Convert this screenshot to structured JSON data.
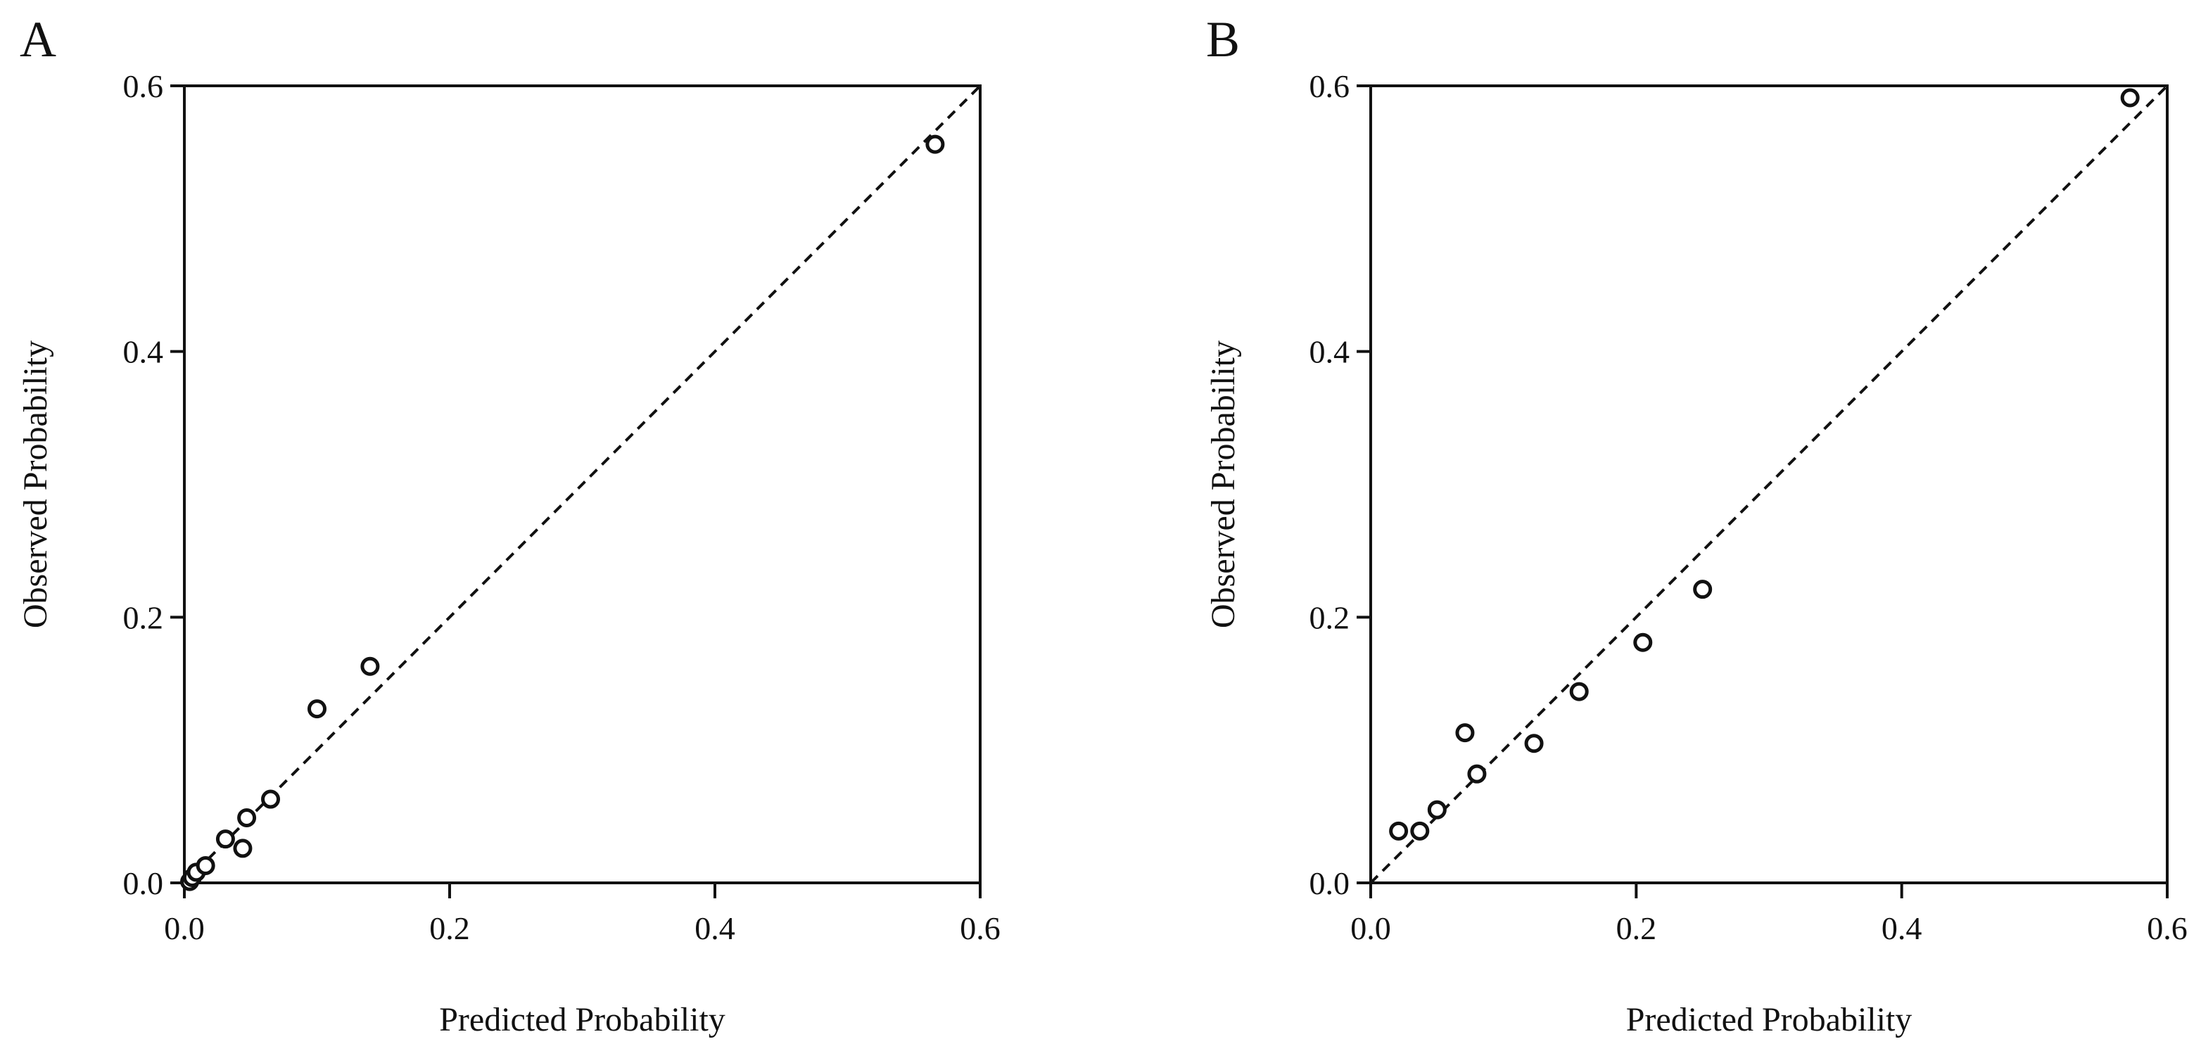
{
  "chart_data": [
    {
      "type": "scatter",
      "panel_label": "A",
      "xlabel": "Predicted Probability",
      "ylabel": "Observed Probability",
      "xlim": [
        0,
        0.6
      ],
      "ylim": [
        0,
        0.6
      ],
      "xticks": [
        "0.0",
        "0.2",
        "0.4",
        "0.6"
      ],
      "yticks": [
        "0.0",
        "0.2",
        "0.4",
        "0.6"
      ],
      "reference_line": "diagonal-dashed",
      "grid": false,
      "x": [
        0.004,
        0.006,
        0.009,
        0.016,
        0.031,
        0.044,
        0.047,
        0.065,
        0.1,
        0.14,
        0.566
      ],
      "y": [
        0.001,
        0.004,
        0.008,
        0.013,
        0.033,
        0.026,
        0.049,
        0.063,
        0.131,
        0.163,
        0.556
      ]
    },
    {
      "type": "scatter",
      "panel_label": "B",
      "xlabel": "Predicted Probability",
      "ylabel": "Observed Probability",
      "xlim": [
        0,
        0.6
      ],
      "ylim": [
        0,
        0.6
      ],
      "xticks": [
        "0.0",
        "0.2",
        "0.4",
        "0.6"
      ],
      "yticks": [
        "0.0",
        "0.2",
        "0.4",
        "0.6"
      ],
      "reference_line": "diagonal-dashed",
      "grid": false,
      "x": [
        0.021,
        0.037,
        0.05,
        0.071,
        0.08,
        0.123,
        0.157,
        0.205,
        0.25,
        0.572
      ],
      "y": [
        0.039,
        0.039,
        0.055,
        0.113,
        0.082,
        0.105,
        0.144,
        0.181,
        0.221,
        0.591
      ]
    }
  ]
}
